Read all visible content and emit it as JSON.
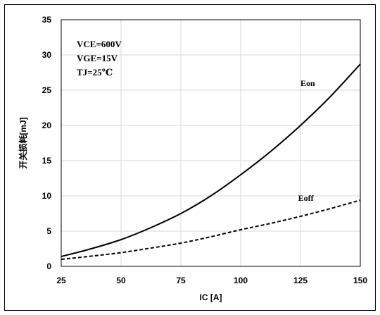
{
  "chart_data": {
    "type": "line",
    "title": "",
    "xlabel": "IC [A]",
    "ylabel": "开关损耗[mJ]",
    "xlim": [
      25,
      150
    ],
    "ylim": [
      0,
      35
    ],
    "x_ticks": [
      25,
      50,
      75,
      100,
      125,
      150
    ],
    "y_ticks": [
      0,
      5,
      10,
      15,
      20,
      25,
      30,
      35
    ],
    "grid": true,
    "annotations": [
      "VCE=600V",
      "VGE=15V",
      "TJ=25℃"
    ],
    "series": [
      {
        "name": "Eon",
        "line_style": "solid",
        "color": "#000000",
        "x": [
          25,
          37.5,
          50,
          62.5,
          75,
          87.5,
          100,
          112.5,
          125,
          137.5,
          150
        ],
        "y": [
          1.4,
          2.5,
          3.8,
          5.5,
          7.5,
          10.0,
          13.0,
          16.3,
          20.0,
          24.1,
          28.7
        ]
      },
      {
        "name": "Eoff",
        "line_style": "dashed",
        "color": "#000000",
        "x": [
          25,
          37.5,
          50,
          62.5,
          75,
          87.5,
          100,
          112.5,
          125,
          137.5,
          150
        ],
        "y": [
          1.0,
          1.45,
          1.95,
          2.6,
          3.3,
          4.2,
          5.2,
          6.1,
          7.1,
          8.2,
          9.4
        ]
      }
    ]
  }
}
